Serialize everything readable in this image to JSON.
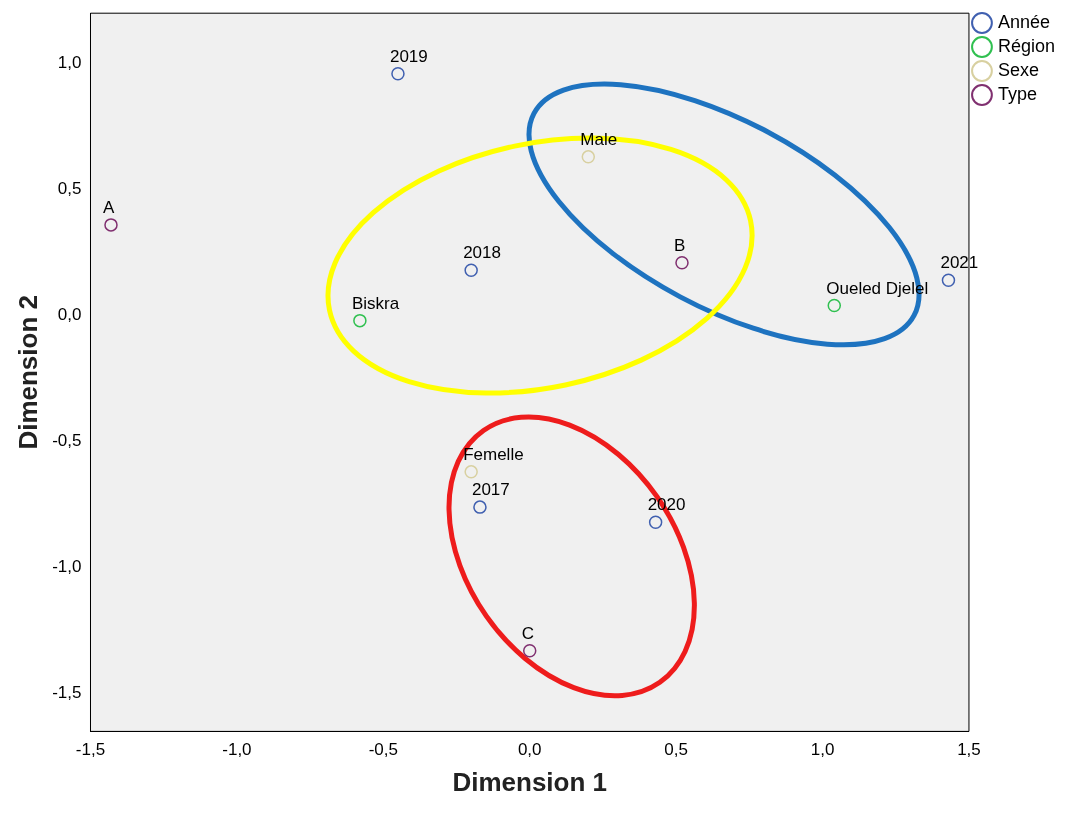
{
  "chart_data": {
    "type": "scatter",
    "xlabel": "Dimension 1",
    "ylabel": "Dimension 2",
    "xlim": [
      -1.5,
      1.5
    ],
    "ylim": [
      -1.65,
      1.2
    ],
    "xticks": [
      {
        "value": -1.5,
        "label": "-1,5"
      },
      {
        "value": -1,
        "label": "-1,0"
      },
      {
        "value": -0.5,
        "label": "-0,5"
      },
      {
        "value": 0,
        "label": "0,0"
      },
      {
        "value": 0.5,
        "label": "0,5"
      },
      {
        "value": 1,
        "label": "1,0"
      },
      {
        "value": 1.5,
        "label": "1,5"
      }
    ],
    "yticks": [
      {
        "value": -1.5,
        "label": "-1,5"
      },
      {
        "value": -1,
        "label": "-1,0"
      },
      {
        "value": -0.5,
        "label": "-0,5"
      },
      {
        "value": 0,
        "label": "0,0"
      },
      {
        "value": 0.5,
        "label": "0,5"
      },
      {
        "value": 1,
        "label": "1,0"
      }
    ],
    "series": [
      {
        "name": "Année",
        "color": "#4060b0",
        "x": [
          -0.17,
          -0.2,
          -0.45,
          0.43,
          1.43
        ],
        "values": [
          -0.76,
          0.18,
          0.96,
          -0.82,
          0.14
        ]
      },
      {
        "name": "Région",
        "color": "#30c050",
        "x": [
          -0.58,
          1.04
        ],
        "values": [
          -0.02,
          0.04
        ]
      },
      {
        "name": "Sexe",
        "color": "#d8d0a0",
        "x": [
          0.2,
          -0.2
        ],
        "values": [
          0.63,
          -0.62
        ]
      },
      {
        "name": "Type",
        "color": "#803070",
        "x": [
          -1.43,
          0.52,
          0.0
        ],
        "values": [
          0.36,
          0.21,
          -1.33
        ]
      }
    ],
    "annotations": [
      {
        "text": "2017",
        "x": -0.17,
        "y": -0.76
      },
      {
        "text": "2018",
        "x": -0.2,
        "y": 0.18
      },
      {
        "text": "2019",
        "x": -0.45,
        "y": 0.96
      },
      {
        "text": "2020",
        "x": 0.43,
        "y": -0.82
      },
      {
        "text": "2021",
        "x": 1.43,
        "y": 0.14
      },
      {
        "text": "Biskra",
        "x": -0.58,
        "y": -0.02
      },
      {
        "text": "Oueled Djelel",
        "x": 1.04,
        "y": 0.04
      },
      {
        "text": "Male",
        "x": 0.2,
        "y": 0.63
      },
      {
        "text": "Femelle",
        "x": -0.2,
        "y": -0.62
      },
      {
        "text": "A",
        "x": -1.43,
        "y": 0.36
      },
      {
        "text": "B",
        "x": 0.52,
        "y": 0.21
      },
      {
        "text": "C",
        "x": 0.0,
        "y": -1.33
      }
    ],
    "marker": "circle",
    "legend": "top right",
    "grid": false
  }
}
